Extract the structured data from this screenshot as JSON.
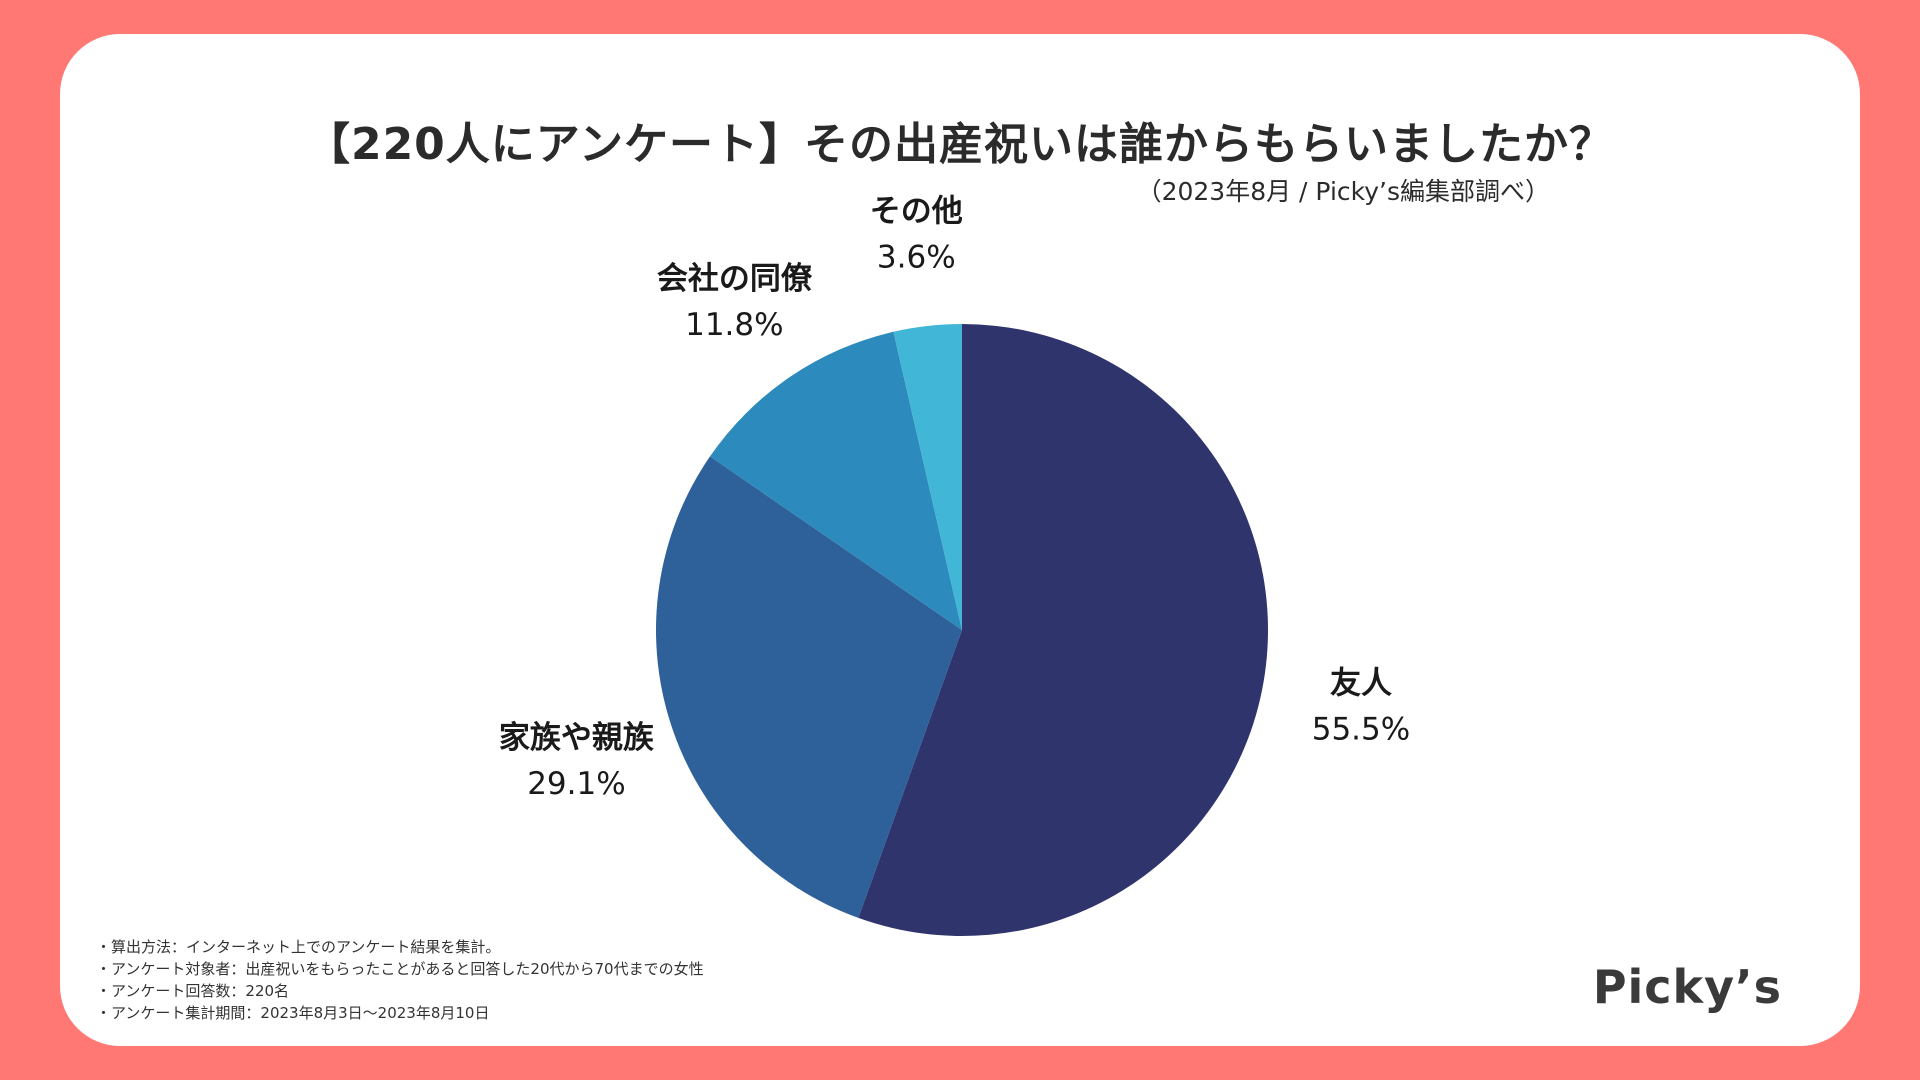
{
  "title": "【220人にアンケート】その出産祝いは誰からもらいましたか？",
  "subtitle": "（2023年8月 / Picky’s編集部調べ）",
  "chart_data": {
    "type": "pie",
    "unit": "%",
    "start_angle_deg": 0,
    "direction": "clockwise",
    "slices": [
      {
        "label": "友人",
        "value": 55.5,
        "value_label": "55.5%",
        "color": "#2F346C"
      },
      {
        "label": "家族や親族",
        "value": 29.1,
        "value_label": "29.1%",
        "color": "#2E6099"
      },
      {
        "label": "会社の同僚",
        "value": 11.8,
        "value_label": "11.8%",
        "color": "#2D8ABC"
      },
      {
        "label": "その他",
        "value": 3.6,
        "value_label": "3.6%",
        "color": "#41B6D6"
      }
    ]
  },
  "notes": [
    "・算出方法：インターネット上でのアンケート結果を集計。",
    "・アンケート対象者：出産祝いをもらったことがあると回答した20代から70代までの女性",
    "・アンケート回答数：220名",
    "・アンケート集計期間：2023年8月3日〜2023年8月10日"
  ],
  "logo": "Picky’s",
  "colors": {
    "background": "#FF7873",
    "card": "#FFFFFF"
  }
}
